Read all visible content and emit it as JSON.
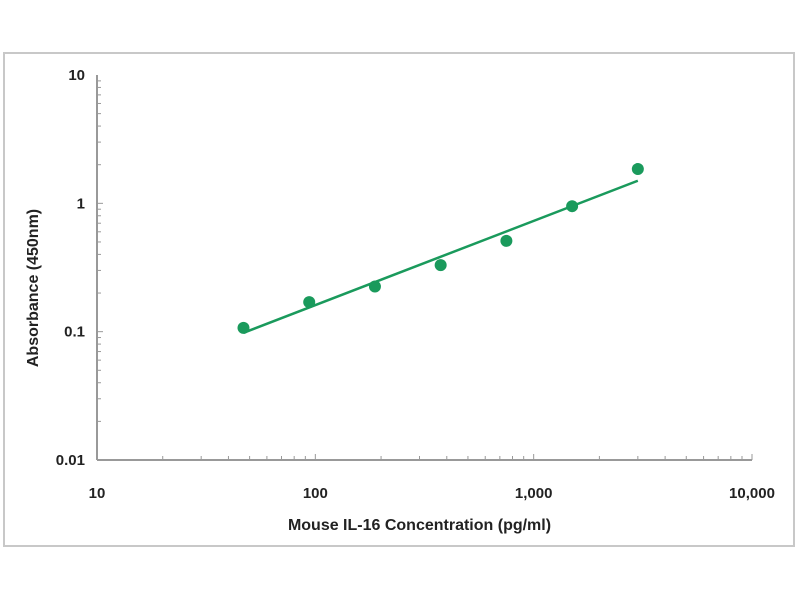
{
  "chart_data": {
    "type": "scatter",
    "xlabel": "Mouse IL-16 Concentration (pg/ml)",
    "ylabel": "Absorbance (450nm)",
    "xscale": "log",
    "yscale": "log",
    "xlim": [
      10,
      10000
    ],
    "ylim": [
      0.01,
      10
    ],
    "xticks": [
      10,
      100,
      1000,
      10000
    ],
    "xtick_labels": [
      "10",
      "100",
      "1,000",
      "10,000"
    ],
    "yticks": [
      0.01,
      0.1,
      1,
      10
    ],
    "ytick_labels": [
      "0.01",
      "0.1",
      "1",
      "10"
    ],
    "grid": false,
    "points": {
      "x": [
        46.875,
        93.75,
        187.5,
        375,
        750,
        1500,
        3000
      ],
      "y": [
        0.107,
        0.17,
        0.225,
        0.33,
        0.51,
        0.95,
        1.85
      ]
    },
    "fit_line": {
      "x": [
        46.875,
        3000
      ],
      "y": [
        0.098,
        1.5
      ]
    },
    "color": "#1a9a5c"
  }
}
